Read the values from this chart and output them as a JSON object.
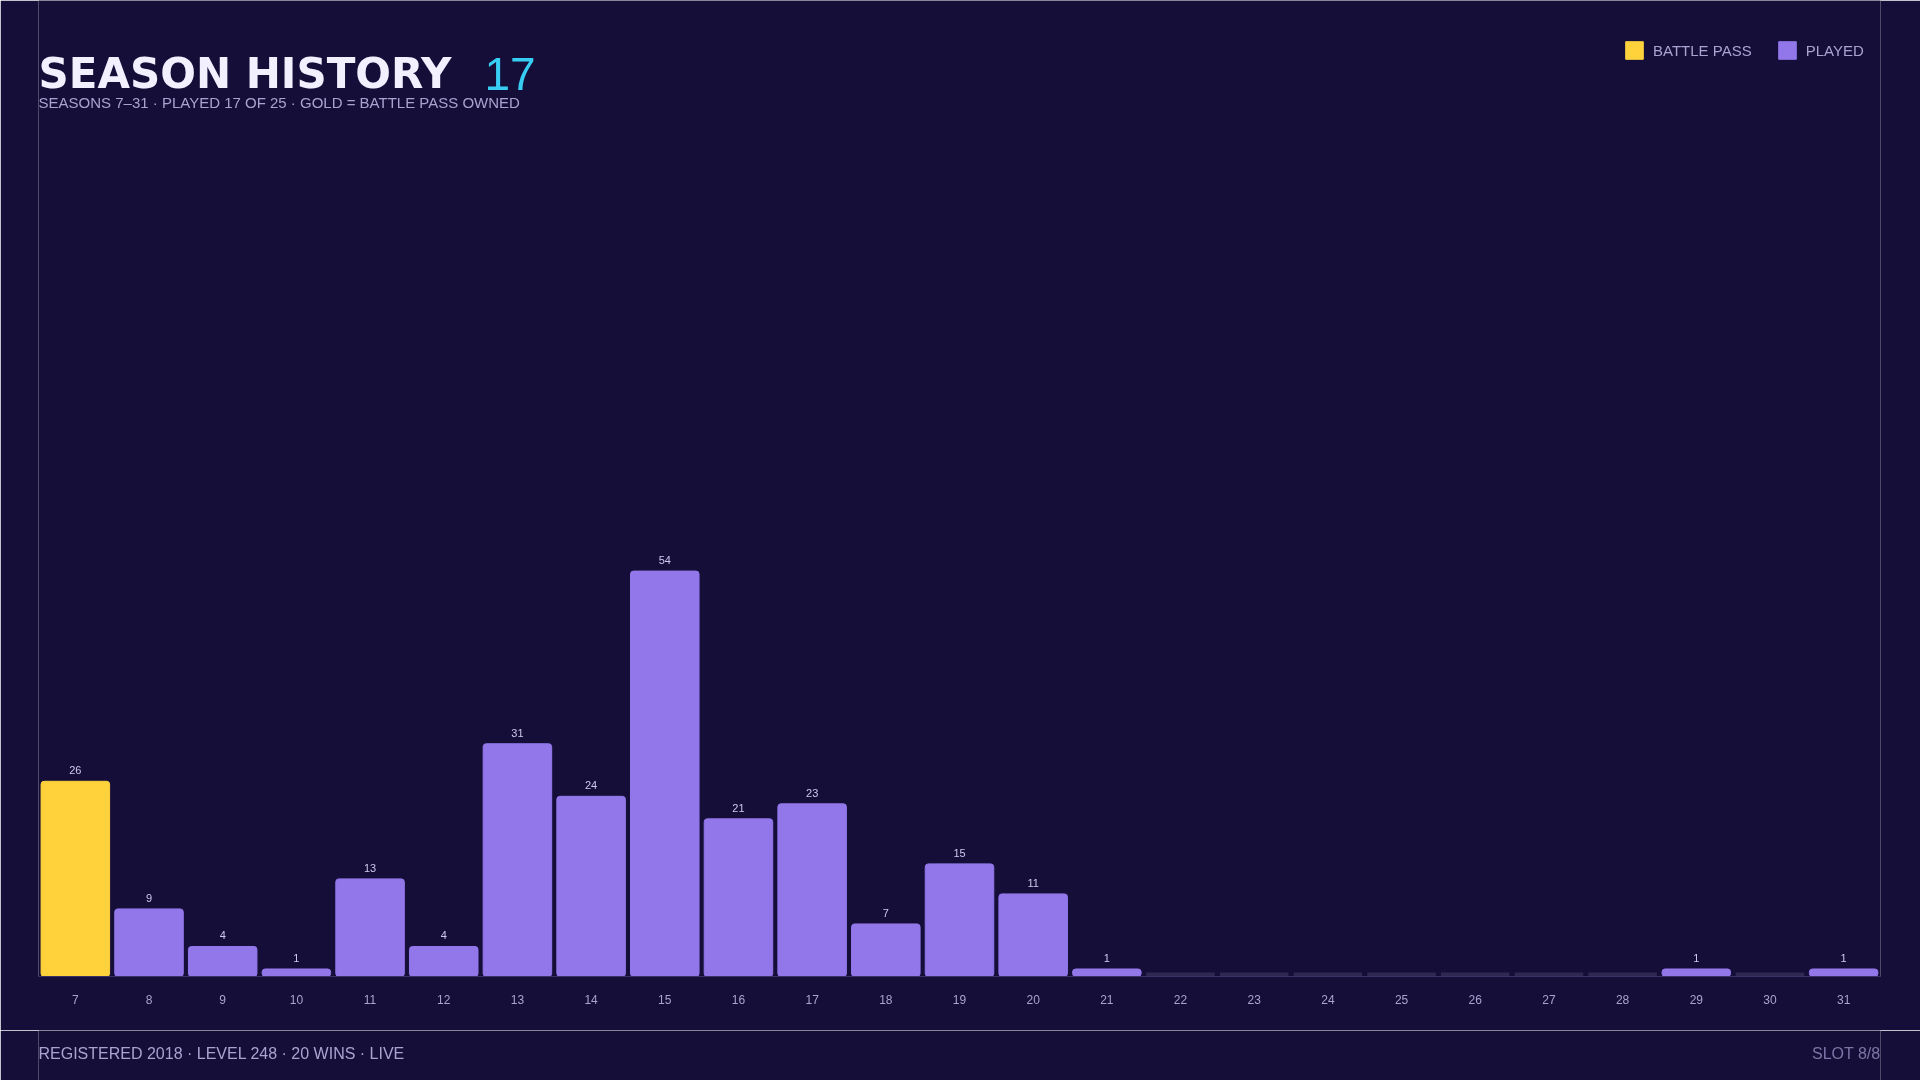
{
  "chart_data": {
    "type": "bar",
    "title": "SEASON HISTORY",
    "subtitle": "SEASONS 7–31 · PLAYED 17 OF 25 · GOLD = BATTLE PASS OWNED",
    "annotations": [
      "17",
      "REGISTERED 2018 · LEVEL 248 · 20 WINS · LIVE",
      "SLOT 8/8"
    ],
    "categories": [
      "7",
      "8",
      "9",
      "10",
      "11",
      "12",
      "13",
      "14",
      "15",
      "16",
      "17",
      "18",
      "19",
      "20",
      "21",
      "22",
      "23",
      "24",
      "25",
      "26",
      "27",
      "28",
      "29",
      "30",
      "31"
    ],
    "series": [
      {
        "name": "BATTLE PASS",
        "color": "#ffd23c",
        "values": [
          26,
          null,
          null,
          null,
          null,
          null,
          null,
          null,
          null,
          null,
          null,
          null,
          null,
          null,
          null,
          null,
          null,
          null,
          null,
          null,
          null,
          null,
          null,
          null,
          null
        ],
        "value_labels": [
          "26",
          null,
          null,
          null,
          null,
          null,
          null,
          null,
          null,
          null,
          null,
          null,
          null,
          null,
          null,
          null,
          null,
          null,
          null,
          null,
          null,
          null,
          null,
          null,
          null
        ]
      },
      {
        "name": "PLAYED",
        "color": "#9277ea",
        "values": [
          null,
          9,
          4,
          1,
          13,
          4,
          31,
          24,
          54,
          21,
          23,
          7,
          15,
          11,
          1,
          null,
          null,
          null,
          null,
          null,
          null,
          null,
          1,
          null,
          1
        ],
        "value_labels": [
          null,
          "9",
          "4",
          "1",
          "13",
          "4",
          "31",
          "24",
          "54",
          "21",
          "23",
          "7",
          "15",
          "11",
          "1",
          null,
          null,
          null,
          null,
          null,
          null,
          null,
          "1",
          null,
          "1"
        ]
      },
      {
        "color": "#2e2852",
        "values": [
          null,
          null,
          null,
          null,
          null,
          null,
          null,
          null,
          null,
          null,
          null,
          null,
          null,
          null,
          null,
          0,
          0,
          0,
          0,
          0,
          0,
          0,
          null,
          0,
          null
        ]
      }
    ],
    "ylim": [
      0,
      130
    ],
    "tick_labels": "x",
    "legend": "top right"
  }
}
